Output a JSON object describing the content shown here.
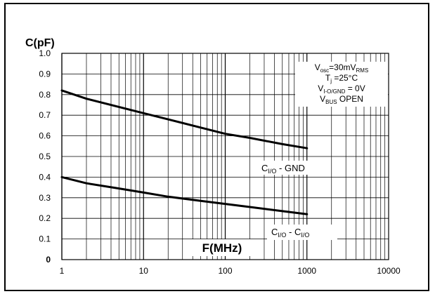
{
  "chart_data": {
    "type": "line",
    "ylabel": "C(pF)",
    "xlabel": "F(MHz)",
    "x_scale": "log",
    "xlim": [
      1,
      10000
    ],
    "ylim": [
      0,
      1.0
    ],
    "x_ticks": [
      "1",
      "10",
      "100",
      "1000",
      "10000"
    ],
    "y_ticks": [
      "0",
      "0.1",
      "0.2",
      "0.3",
      "0.4",
      "0.5",
      "0.6",
      "0.7",
      "0.8",
      "0.9",
      "1.0"
    ],
    "grid": true,
    "conditions": {
      "line1": {
        "main": "V",
        "sub": "osc",
        "rest": "=30mV",
        "sub2": "RMS"
      },
      "line2": {
        "main": "T",
        "sub": "j",
        "rest": " =25°C"
      },
      "line3": {
        "main": "V",
        "sub": "I-O/GND",
        "rest": " = 0V"
      },
      "line4": {
        "main": "V",
        "sub": "BUS",
        "rest": " OPEN"
      }
    },
    "series": [
      {
        "label": {
          "main": "C",
          "sub": "I/O",
          "rest": " - GND"
        },
        "x": [
          1,
          2,
          5,
          10,
          20,
          50,
          100,
          200,
          500,
          1000
        ],
        "y": [
          0.82,
          0.78,
          0.74,
          0.71,
          0.68,
          0.64,
          0.61,
          0.59,
          0.56,
          0.54
        ]
      },
      {
        "label": {
          "main": "C",
          "sub": "I/O",
          "rest": " - C",
          "sub2": "I/O"
        },
        "x": [
          1,
          2,
          5,
          10,
          20,
          50,
          100,
          200,
          500,
          1000
        ],
        "y": [
          0.4,
          0.37,
          0.345,
          0.325,
          0.305,
          0.285,
          0.27,
          0.255,
          0.235,
          0.22
        ]
      }
    ]
  }
}
